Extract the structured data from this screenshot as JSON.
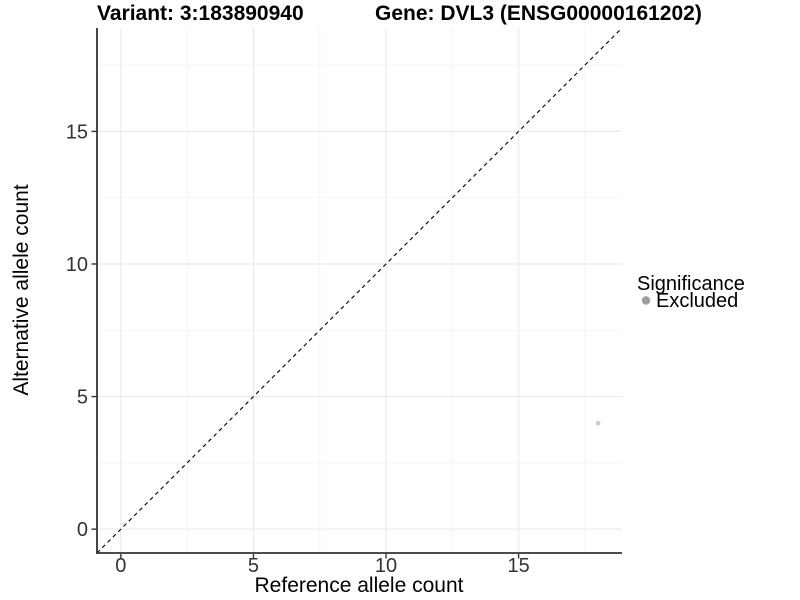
{
  "titles": {
    "variant_label": "Variant: 3:183890940",
    "gene_label": "Gene: DVL3 (ENSG00000161202)"
  },
  "chart_data": {
    "type": "scatter",
    "title": "Variant: 3:183890940    Gene: DVL3 (ENSG00000161202)",
    "xlabel": "Reference allele count",
    "ylabel": "Alternative allele count",
    "xlim": [
      -0.9,
      18.9
    ],
    "ylim": [
      -0.9,
      18.9
    ],
    "x_ticks": [
      0,
      5,
      10,
      15
    ],
    "y_ticks": [
      0,
      5,
      10,
      15
    ],
    "x_minor_gridlines": [
      2.5,
      7.5,
      12.5,
      17.5
    ],
    "y_minor_gridlines": [
      2.5,
      7.5,
      12.5,
      17.5
    ],
    "grid": "major-and-minor",
    "series": [
      {
        "name": "Excluded",
        "color": "#c8c8c8",
        "points": [
          {
            "x": 18,
            "y": 4
          }
        ]
      }
    ],
    "reference_line": {
      "type": "identity",
      "equation": "y = x",
      "style": "dashed",
      "color": "#000000"
    },
    "legend": {
      "title": "Significance",
      "position": "right",
      "entries": [
        {
          "label": "Excluded",
          "color": "#9f9f9f"
        }
      ]
    }
  },
  "colors": {
    "background": "#ffffff",
    "axis_line": "#333333",
    "tick_mark": "#333333",
    "tick_label": "#333333",
    "major_grid": "#ebebeb",
    "minor_grid": "#f5f5f5"
  }
}
